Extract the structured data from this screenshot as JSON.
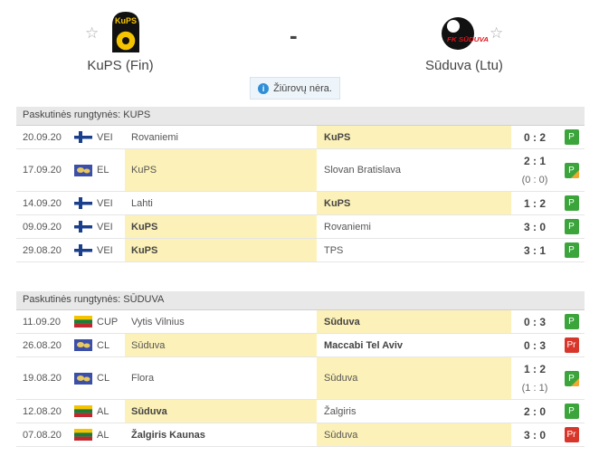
{
  "match": {
    "home_team": "KuPS (Fin)",
    "away_team": "Sūduva (Ltu)",
    "separator": "-",
    "notice": "Žiūrovų nėra.",
    "home_logo_text": "KuPS",
    "away_logo_text": "FK SŪDUVA"
  },
  "colors": {
    "highlight": "#fcf1b8",
    "win": "#3ba53b",
    "loss": "#d9362b",
    "extra": "#f0a830"
  },
  "tables": [
    {
      "title": "Paskutinės rungtynės: KUPS",
      "rows": [
        {
          "date": "20.09.20",
          "flag": "finland-flag",
          "comp": "VEI",
          "home": "Rovaniemi",
          "away": "KuPS",
          "score": "0 : 2",
          "ht": "",
          "result": "P",
          "hl": "away",
          "bold": "away",
          "type": "W"
        },
        {
          "date": "17.09.20",
          "flag": "europe-flag",
          "comp": "EL",
          "home": "KuPS",
          "away": "Slovan Bratislava",
          "score": "2 : 1",
          "ht": "(0 : 0)",
          "result": "P",
          "hl": "home",
          "bold": "",
          "type": "W X"
        },
        {
          "date": "14.09.20",
          "flag": "finland-flag",
          "comp": "VEI",
          "home": "Lahti",
          "away": "KuPS",
          "score": "1 : 2",
          "ht": "",
          "result": "P",
          "hl": "away",
          "bold": "away",
          "type": "W"
        },
        {
          "date": "09.09.20",
          "flag": "finland-flag",
          "comp": "VEI",
          "home": "KuPS",
          "away": "Rovaniemi",
          "score": "3 : 0",
          "ht": "",
          "result": "P",
          "hl": "home",
          "bold": "home",
          "type": "W"
        },
        {
          "date": "29.08.20",
          "flag": "finland-flag",
          "comp": "VEI",
          "home": "KuPS",
          "away": "TPS",
          "score": "3 : 1",
          "ht": "",
          "result": "P",
          "hl": "home",
          "bold": "home",
          "type": "W"
        }
      ]
    },
    {
      "title": "Paskutinės rungtynės: SŪDUVA",
      "rows": [
        {
          "date": "11.09.20",
          "flag": "lithuania-flag",
          "comp": "CUP",
          "home": "Vytis Vilnius",
          "away": "Sūduva",
          "score": "0 : 3",
          "ht": "",
          "result": "P",
          "hl": "away",
          "bold": "away",
          "type": "W"
        },
        {
          "date": "26.08.20",
          "flag": "europe-flag",
          "comp": "CL",
          "home": "Sūduva",
          "away": "Maccabi Tel Aviv",
          "score": "0 : 3",
          "ht": "",
          "result": "Pr",
          "hl": "home",
          "bold": "away",
          "type": "L"
        },
        {
          "date": "19.08.20",
          "flag": "europe-flag",
          "comp": "CL",
          "home": "Flora",
          "away": "Sūduva",
          "score": "1 : 2",
          "ht": "(1 : 1)",
          "result": "P",
          "hl": "away",
          "bold": "",
          "type": "W X"
        },
        {
          "date": "12.08.20",
          "flag": "lithuania-flag",
          "comp": "AL",
          "home": "Sūduva",
          "away": "Žalgiris",
          "score": "2 : 0",
          "ht": "",
          "result": "P",
          "hl": "home",
          "bold": "home",
          "type": "W"
        },
        {
          "date": "07.08.20",
          "flag": "lithuania-flag",
          "comp": "AL",
          "home": "Žalgiris Kaunas",
          "away": "Sūduva",
          "score": "3 : 0",
          "ht": "",
          "result": "Pr",
          "hl": "away",
          "bold": "home",
          "type": "L"
        }
      ]
    }
  ]
}
